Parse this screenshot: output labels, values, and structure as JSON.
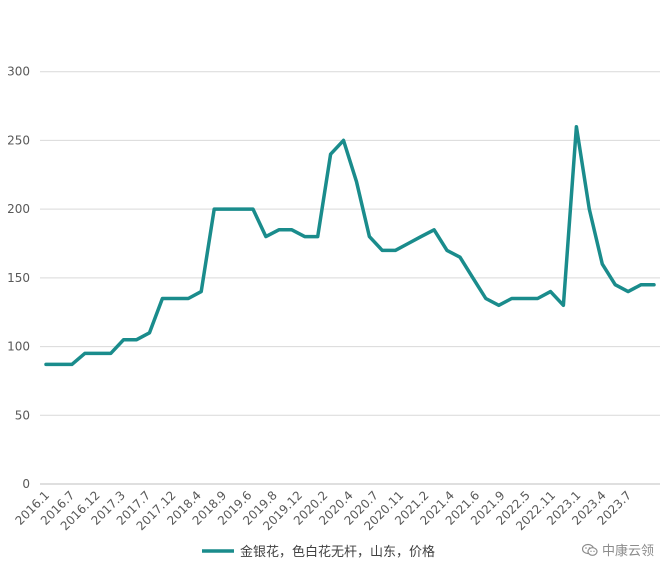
{
  "chart_data": {
    "type": "line",
    "title": "",
    "xlabel": "",
    "ylabel": "",
    "ylim": [
      0,
      350
    ],
    "yticks": [
      0,
      50,
      100,
      150,
      200,
      250,
      300
    ],
    "grid": true,
    "legend_position": "bottom",
    "x_tick_labels": [
      "2016.1",
      "2016.7",
      "2016.12",
      "2017.3",
      "2017.7",
      "2017.12",
      "2018.4",
      "2018.9",
      "2019.6",
      "2019.8",
      "2019.12",
      "2020.2",
      "2020.4",
      "2020.7",
      "2020.11",
      "2021.2",
      "2021.4",
      "2021.6",
      "2021.9",
      "2022.5",
      "2022.11",
      "2023.1",
      "2023.4",
      "2023.7"
    ],
    "series": [
      {
        "name": "金银花，色白花无杆，山东，价格",
        "color": "#1a8c8c",
        "values": [
          87,
          87,
          87,
          95,
          95,
          95,
          105,
          105,
          110,
          135,
          135,
          135,
          140,
          200,
          200,
          200,
          200,
          180,
          185,
          185,
          180,
          180,
          240,
          250,
          220,
          180,
          170,
          170,
          175,
          180,
          185,
          170,
          165,
          150,
          135,
          130,
          135,
          135,
          135,
          140,
          130,
          260,
          200,
          160,
          145,
          140,
          145,
          145
        ]
      }
    ]
  },
  "watermark": {
    "text": "中康云领",
    "icon": "wechat-icon"
  }
}
